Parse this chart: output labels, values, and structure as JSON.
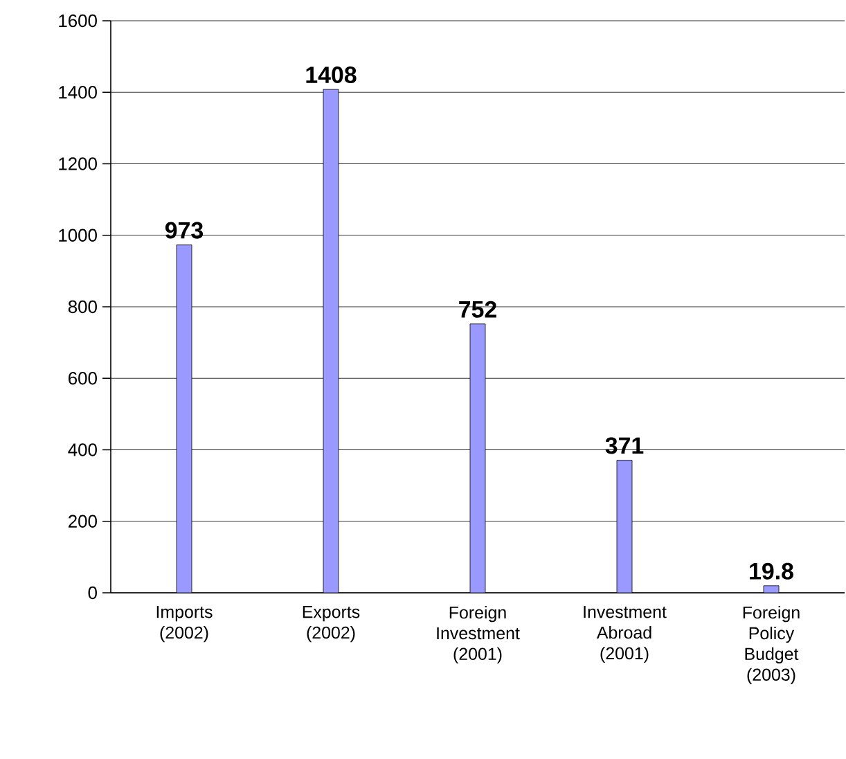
{
  "chart_data": {
    "type": "bar",
    "categories": [
      "Imports (2002)",
      "Exports (2002)",
      "Foreign Investment (2001)",
      "Investment Abroad (2001)",
      "Foreign Policy Budget (2003)"
    ],
    "values": [
      973,
      1408,
      752,
      371,
      19.8
    ],
    "color": "#9999ff",
    "ylim": [
      0,
      1600
    ],
    "yticks": [
      0,
      200,
      400,
      600,
      800,
      1000,
      1200,
      1400,
      1600
    ],
    "grid": "y",
    "data_labels": true
  }
}
